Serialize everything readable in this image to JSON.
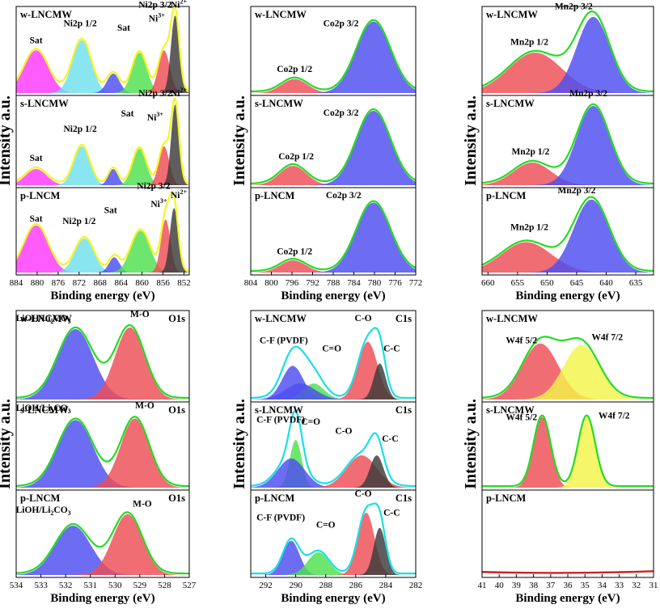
{
  "colors": {
    "magenta": "#ff38ff",
    "cyan": "#6fe0ee",
    "blue": "#4d4df0",
    "green": "#4ee04e",
    "red": "#ee4d55",
    "dark": "#3b3b3b",
    "yellow": "#f4f44a",
    "orange": "#f08a3a",
    "env_yellow": "#f5f520",
    "env_green": "#22dd22",
    "env_cyan": "#18e0e6",
    "baseline": "#cc2020"
  },
  "chart_data": [
    {
      "id": "ni2p",
      "type": "area",
      "region": "Ni 2p",
      "x_range": [
        884,
        851
      ],
      "xticks": [
        884,
        880,
        876,
        872,
        868,
        864,
        860,
        856,
        852
      ],
      "xlabel": "Binding energy (eV)",
      "ylabel": "Intensity a.u.",
      "envelope_color": "env_yellow",
      "samples": [
        {
          "name": "w-LNCMW",
          "peaks": [
            {
              "center": 880.2,
              "height": 0.55,
              "width": 2.3,
              "color": "magenta"
            },
            {
              "center": 871.5,
              "height": 0.68,
              "width": 1.8,
              "color": "cyan"
            },
            {
              "center": 865.5,
              "height": 0.25,
              "width": 1.2,
              "color": "blue"
            },
            {
              "center": 860.5,
              "height": 0.52,
              "width": 1.4,
              "color": "green"
            },
            {
              "center": 855.8,
              "height": 0.55,
              "width": 1.1,
              "color": "red"
            },
            {
              "center": 853.7,
              "height": 1.0,
              "width": 0.8,
              "color": "dark"
            }
          ],
          "labels": [
            {
              "text": "Sat",
              "x": 880.2,
              "y": 0.64
            },
            {
              "text": "Ni2p 1/2",
              "x": 871.8,
              "y": 0.86
            },
            {
              "text": "Sat",
              "x": 863.5,
              "y": 0.8
            },
            {
              "text": "Ni2p 3/2",
              "x": 857.5,
              "y": 1.1
            },
            {
              "text": "Ni3+",
              "x": 857.2,
              "y": 0.92
            },
            {
              "text": "Ni2+",
              "x": 853.0,
              "y": 1.1
            }
          ]
        },
        {
          "name": "s-LNCMW",
          "peaks": [
            {
              "center": 880.2,
              "height": 0.2,
              "width": 2.0,
              "color": "magenta"
            },
            {
              "center": 871.5,
              "height": 0.48,
              "width": 1.5,
              "color": "cyan"
            },
            {
              "center": 865.5,
              "height": 0.2,
              "width": 0.9,
              "color": "blue"
            },
            {
              "center": 860.5,
              "height": 0.45,
              "width": 1.3,
              "color": "green"
            },
            {
              "center": 855.8,
              "height": 0.48,
              "width": 1.0,
              "color": "red"
            },
            {
              "center": 853.7,
              "height": 1.0,
              "width": 0.75,
              "color": "dark"
            }
          ],
          "labels": [
            {
              "text": "Sat",
              "x": 880.2,
              "y": 0.3
            },
            {
              "text": "Ni2p 1/2",
              "x": 871.8,
              "y": 0.66
            },
            {
              "text": "Sat",
              "x": 862.8,
              "y": 0.85
            },
            {
              "text": "Ni2p 3/2",
              "x": 857.5,
              "y": 1.1
            },
            {
              "text": "Ni3+",
              "x": 857.5,
              "y": 0.8
            },
            {
              "text": "Ni2+",
              "x": 853.0,
              "y": 1.1
            }
          ]
        },
        {
          "name": "p-LNCM",
          "peaks": [
            {
              "center": 880.2,
              "height": 0.62,
              "width": 2.3,
              "color": "magenta"
            },
            {
              "center": 871.0,
              "height": 0.45,
              "width": 1.8,
              "color": "cyan"
            },
            {
              "center": 865.3,
              "height": 0.2,
              "width": 1.0,
              "color": "blue"
            },
            {
              "center": 860.3,
              "height": 0.55,
              "width": 1.8,
              "color": "green"
            },
            {
              "center": 855.5,
              "height": 0.7,
              "width": 0.9,
              "color": "red"
            },
            {
              "center": 853.9,
              "height": 0.85,
              "width": 0.8,
              "color": "dark"
            }
          ],
          "labels": [
            {
              "text": "Sat",
              "x": 880.2,
              "y": 0.67
            },
            {
              "text": "Ni2p 1/2",
              "x": 872.0,
              "y": 0.64
            },
            {
              "text": "Sat",
              "x": 866.0,
              "y": 0.78
            },
            {
              "text": "Ni2p 3/2",
              "x": 857.8,
              "y": 1.1
            },
            {
              "text": "Ni3+",
              "x": 856.8,
              "y": 0.86
            },
            {
              "text": "Ni2+",
              "x": 853.0,
              "y": 0.98
            }
          ]
        }
      ]
    },
    {
      "id": "co2p",
      "type": "area",
      "region": "Co 2p",
      "x_range": [
        804,
        772
      ],
      "xticks": [
        804,
        800,
        796,
        792,
        788,
        784,
        780,
        776,
        772
      ],
      "xlabel": "Binding energy (eV)",
      "ylabel": "",
      "envelope_color": "env_green",
      "samples": [
        {
          "name": "w-LNCMW",
          "peaks": [
            {
              "center": 795.5,
              "height": 0.18,
              "width": 2.5,
              "color": "red"
            },
            {
              "center": 780.2,
              "height": 0.92,
              "width": 3.3,
              "color": "blue"
            }
          ],
          "labels": [
            {
              "text": "Co2p 3/2",
              "x": 786.5,
              "y": 0.86
            },
            {
              "text": "Co2p 1/2",
              "x": 795.5,
              "y": 0.27
            }
          ]
        },
        {
          "name": "s-LNCMW",
          "peaks": [
            {
              "center": 795.8,
              "height": 0.24,
              "width": 2.6,
              "color": "red"
            },
            {
              "center": 780.2,
              "height": 0.92,
              "width": 3.3,
              "color": "blue"
            }
          ],
          "labels": [
            {
              "text": "Co2p 3/2",
              "x": 786.5,
              "y": 0.86
            },
            {
              "text": "Co2p 1/2",
              "x": 795.2,
              "y": 0.32
            }
          ]
        },
        {
          "name": "p-LNCM",
          "peaks": [
            {
              "center": 795.8,
              "height": 0.16,
              "width": 2.5,
              "color": "red"
            },
            {
              "center": 780.2,
              "height": 0.92,
              "width": 3.3,
              "color": "blue"
            }
          ],
          "labels": [
            {
              "text": "Co2p 3/2",
              "x": 786.0,
              "y": 0.98
            },
            {
              "text": "Co2p 1/2",
              "x": 795.5,
              "y": 0.24
            }
          ]
        }
      ]
    },
    {
      "id": "mn2p",
      "type": "area",
      "region": "Mn 2p",
      "x_range": [
        661,
        632
      ],
      "xticks": [
        660,
        655,
        650,
        645,
        640,
        635
      ],
      "xlabel": "Binding energy (eV)",
      "ylabel": "",
      "envelope_color": "env_green",
      "samples": [
        {
          "name": "w-LNCMW",
          "peaks": [
            {
              "center": 652.0,
              "height": 0.52,
              "width": 4.5,
              "color": "red"
            },
            {
              "center": 642.2,
              "height": 0.98,
              "width": 2.8,
              "color": "blue"
            }
          ],
          "labels": [
            {
              "text": "Mn2p 3/2",
              "x": 645.5,
              "y": 1.08
            },
            {
              "text": "Mn2p 1/2",
              "x": 653.0,
              "y": 0.62
            }
          ]
        },
        {
          "name": "s-LNCMW",
          "peaks": [
            {
              "center": 652.5,
              "height": 0.28,
              "width": 3.2,
              "color": "red"
            },
            {
              "center": 642.2,
              "height": 0.98,
              "width": 2.8,
              "color": "blue"
            }
          ],
          "labels": [
            {
              "text": "Mn2p 3/2",
              "x": 643.0,
              "y": 1.1
            },
            {
              "text": "Mn2p 1/2",
              "x": 652.8,
              "y": 0.38
            }
          ]
        },
        {
          "name": "p-LNCM",
          "peaks": [
            {
              "center": 653.5,
              "height": 0.4,
              "width": 4.2,
              "color": "red"
            },
            {
              "center": 642.5,
              "height": 0.96,
              "width": 3.0,
              "color": "blue"
            }
          ],
          "labels": [
            {
              "text": "Mn2p 3/2",
              "x": 645.0,
              "y": 1.04
            },
            {
              "text": "Mn2p 1/2",
              "x": 653.0,
              "y": 0.56
            }
          ]
        }
      ]
    },
    {
      "id": "o1s",
      "type": "area",
      "region": "O1s",
      "x_range": [
        534,
        527
      ],
      "xticks": [
        534,
        533,
        532,
        531,
        530,
        529,
        528,
        527
      ],
      "xlabel": "Binding energy (eV)",
      "ylabel": "Intensity a.u.",
      "envelope_color": "env_green",
      "samples": [
        {
          "name": "w-LNCMW",
          "tag": "O1s",
          "peaks": [
            {
              "center": 531.6,
              "height": 0.88,
              "width": 0.72,
              "color": "blue"
            },
            {
              "center": 529.4,
              "height": 0.9,
              "width": 0.6,
              "color": "red"
            }
          ],
          "labels": [
            {
              "text": "LiOH/Li2CO3",
              "x": 532.9,
              "y": 0.98
            },
            {
              "text": "M-O",
              "x": 529.0,
              "y": 1.03
            }
          ]
        },
        {
          "name": "s-LNCMW",
          "tag": "O1s",
          "peaks": [
            {
              "center": 531.6,
              "height": 0.88,
              "width": 0.72,
              "color": "blue"
            },
            {
              "center": 529.2,
              "height": 0.9,
              "width": 0.58,
              "color": "red"
            }
          ],
          "labels": [
            {
              "text": "LiOH/Li2CO3",
              "x": 532.9,
              "y": 1.0
            },
            {
              "text": "M-O",
              "x": 528.8,
              "y": 1.03
            }
          ]
        },
        {
          "name": "p-LNCM",
          "tag": "O1s",
          "peaks": [
            {
              "center": 531.7,
              "height": 0.65,
              "width": 0.72,
              "color": "blue"
            },
            {
              "center": 529.5,
              "height": 0.8,
              "width": 0.6,
              "color": "red"
            }
          ],
          "labels": [
            {
              "text": "LiOH/Li2CO3",
              "x": 532.9,
              "y": 0.82
            },
            {
              "text": "M-O",
              "x": 528.9,
              "y": 0.9
            }
          ]
        }
      ]
    },
    {
      "id": "c1s",
      "type": "area",
      "region": "C1s",
      "x_range": [
        293,
        282
      ],
      "xticks": [
        292,
        290,
        288,
        286,
        284,
        282
      ],
      "xlabel": "Binding energy (eV)",
      "ylabel": "",
      "envelope_color": "env_cyan",
      "samples": [
        {
          "name": "w-LNCMW",
          "tag": "C1s",
          "peaks": [
            {
              "center": 290.2,
              "height": 0.42,
              "width": 0.7,
              "color": "blue"
            },
            {
              "center": 288.8,
              "height": 0.2,
              "width": 0.7,
              "color": "green"
            },
            {
              "center": 285.2,
              "height": 0.72,
              "width": 0.65,
              "color": "red"
            },
            {
              "center": 284.4,
              "height": 0.45,
              "width": 0.4,
              "color": "dark"
            },
            {
              "center": 289.7,
              "height": 0.2,
              "width": 1.0,
              "color": "blue"
            }
          ],
          "labels": [
            {
              "text": "C-F (PVDF)",
              "x": 290.8,
              "y": 0.7
            },
            {
              "text": "C=O",
              "x": 287.6,
              "y": 0.6
            },
            {
              "text": "C-O",
              "x": 285.5,
              "y": 0.98
            },
            {
              "text": "C-C",
              "x": 283.6,
              "y": 0.6
            }
          ]
        },
        {
          "name": "s-LNCMW",
          "tag": "C1s",
          "peaks": [
            {
              "center": 290.0,
              "height": 0.62,
              "width": 0.4,
              "color": "green"
            },
            {
              "center": 290.3,
              "height": 0.38,
              "width": 0.9,
              "color": "blue"
            },
            {
              "center": 285.6,
              "height": 0.42,
              "width": 1.0,
              "color": "red"
            },
            {
              "center": 284.6,
              "height": 0.42,
              "width": 0.45,
              "color": "dark"
            }
          ],
          "labels": [
            {
              "text": "C-F (PVDF)",
              "x": 291.0,
              "y": 0.85
            },
            {
              "text": "C=O",
              "x": 289.0,
              "y": 0.82
            },
            {
              "text": "C-O",
              "x": 286.8,
              "y": 0.7
            },
            {
              "text": "C-C",
              "x": 283.7,
              "y": 0.6
            }
          ]
        },
        {
          "name": "p-LNCM",
          "tag": "C1s",
          "peaks": [
            {
              "center": 290.3,
              "height": 0.45,
              "width": 0.55,
              "color": "blue"
            },
            {
              "center": 288.5,
              "height": 0.3,
              "width": 0.7,
              "color": "green"
            },
            {
              "center": 285.3,
              "height": 0.82,
              "width": 0.55,
              "color": "red"
            },
            {
              "center": 284.4,
              "height": 0.62,
              "width": 0.4,
              "color": "dark"
            }
          ],
          "labels": [
            {
              "text": "C-F (PVDF)",
              "x": 291.0,
              "y": 0.72
            },
            {
              "text": "C=O",
              "x": 288.0,
              "y": 0.62
            },
            {
              "text": "C-O",
              "x": 285.5,
              "y": 1.03
            },
            {
              "text": "C-C",
              "x": 283.6,
              "y": 0.78
            }
          ]
        }
      ]
    },
    {
      "id": "w4f",
      "type": "area",
      "region": "W4f",
      "x_range": [
        41,
        31
      ],
      "xticks": [
        41,
        40,
        39,
        38,
        37,
        36,
        35,
        34,
        33,
        32,
        31
      ],
      "xlabel": "Binding energy (eV)",
      "ylabel": "Intensity a.u.",
      "envelope_color": "env_green",
      "samples": [
        {
          "name": "w-LNCMW",
          "peaks": [
            {
              "center": 37.6,
              "height": 0.7,
              "width": 1.05,
              "color": "red"
            },
            {
              "center": 35.2,
              "height": 0.68,
              "width": 1.05,
              "color": "yellow"
            }
          ],
          "labels": [
            {
              "text": "W4f 5/2",
              "x": 38.7,
              "y": 0.7
            },
            {
              "text": "W4f 7/2",
              "x": 33.7,
              "y": 0.74
            }
          ]
        },
        {
          "name": "s-LNCMW",
          "peaks": [
            {
              "center": 37.5,
              "height": 0.92,
              "width": 0.5,
              "color": "red"
            },
            {
              "center": 34.9,
              "height": 0.92,
              "width": 0.5,
              "color": "yellow"
            }
          ],
          "labels": [
            {
              "text": "W4f 5/2",
              "x": 38.7,
              "y": 0.88
            },
            {
              "text": "W4f 7/2",
              "x": 33.3,
              "y": 0.9
            }
          ]
        },
        {
          "name": "p-LNCM",
          "peaks": [],
          "baseline": {
            "start": 0.04,
            "mid": 0.03,
            "end": 0.05
          },
          "labels": []
        }
      ]
    }
  ]
}
